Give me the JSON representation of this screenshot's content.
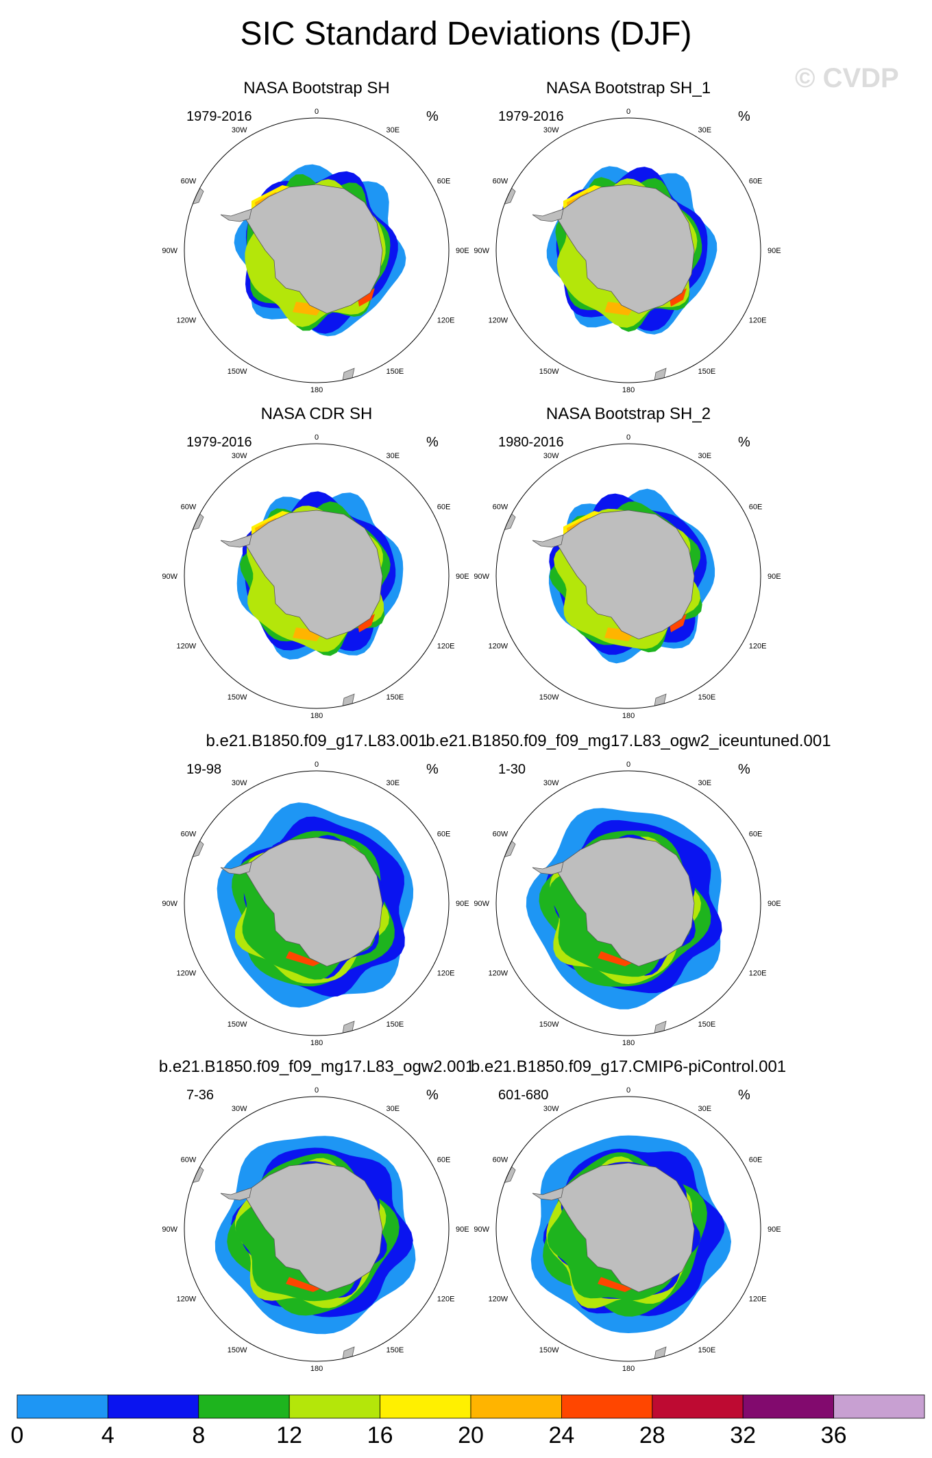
{
  "title": "SIC Standard Deviations (DJF)",
  "watermark": "© CVDP",
  "units": "%",
  "longitude_labels": [
    "0",
    "30E",
    "60E",
    "90E",
    "120E",
    "150E",
    "180",
    "150W",
    "120W",
    "90W",
    "60W",
    "30W"
  ],
  "panels": [
    {
      "title": "NASA Bootstrap SH",
      "period": "1979-2016",
      "style": "obs"
    },
    {
      "title": "NASA Bootstrap SH_1",
      "period": "1979-2016",
      "style": "obs"
    },
    {
      "title": "NASA CDR SH",
      "period": "1979-2016",
      "style": "obs"
    },
    {
      "title": "NASA Bootstrap SH_2",
      "period": "1980-2016",
      "style": "obs"
    },
    {
      "title": "b.e21.B1850.f09_g17.L83.001",
      "period": "19-98",
      "style": "model"
    },
    {
      "title": "b.e21.B1850.f09_f09_mg17.L83_ogw2_iceuntuned.001",
      "period": "1-30",
      "style": "model"
    },
    {
      "title": "b.e21.B1850.f09_f09_mg17.L83_ogw2.001",
      "period": "7-36",
      "style": "model"
    },
    {
      "title": "b.e21.B1850.f09_g17.CMIP6-piControl.001",
      "period": "601-680",
      "style": "model"
    }
  ],
  "colorbar": {
    "labels": [
      "0",
      "4",
      "8",
      "12",
      "16",
      "20",
      "24",
      "28",
      "32",
      "36"
    ],
    "colors": [
      "#1e96f4",
      "#0a14f0",
      "#1eb41e",
      "#b4e60a",
      "#fff000",
      "#ffb400",
      "#ff4600",
      "#be0a32",
      "#820a6e",
      "#c8a0d2"
    ]
  },
  "land_color": "#bebebe"
}
